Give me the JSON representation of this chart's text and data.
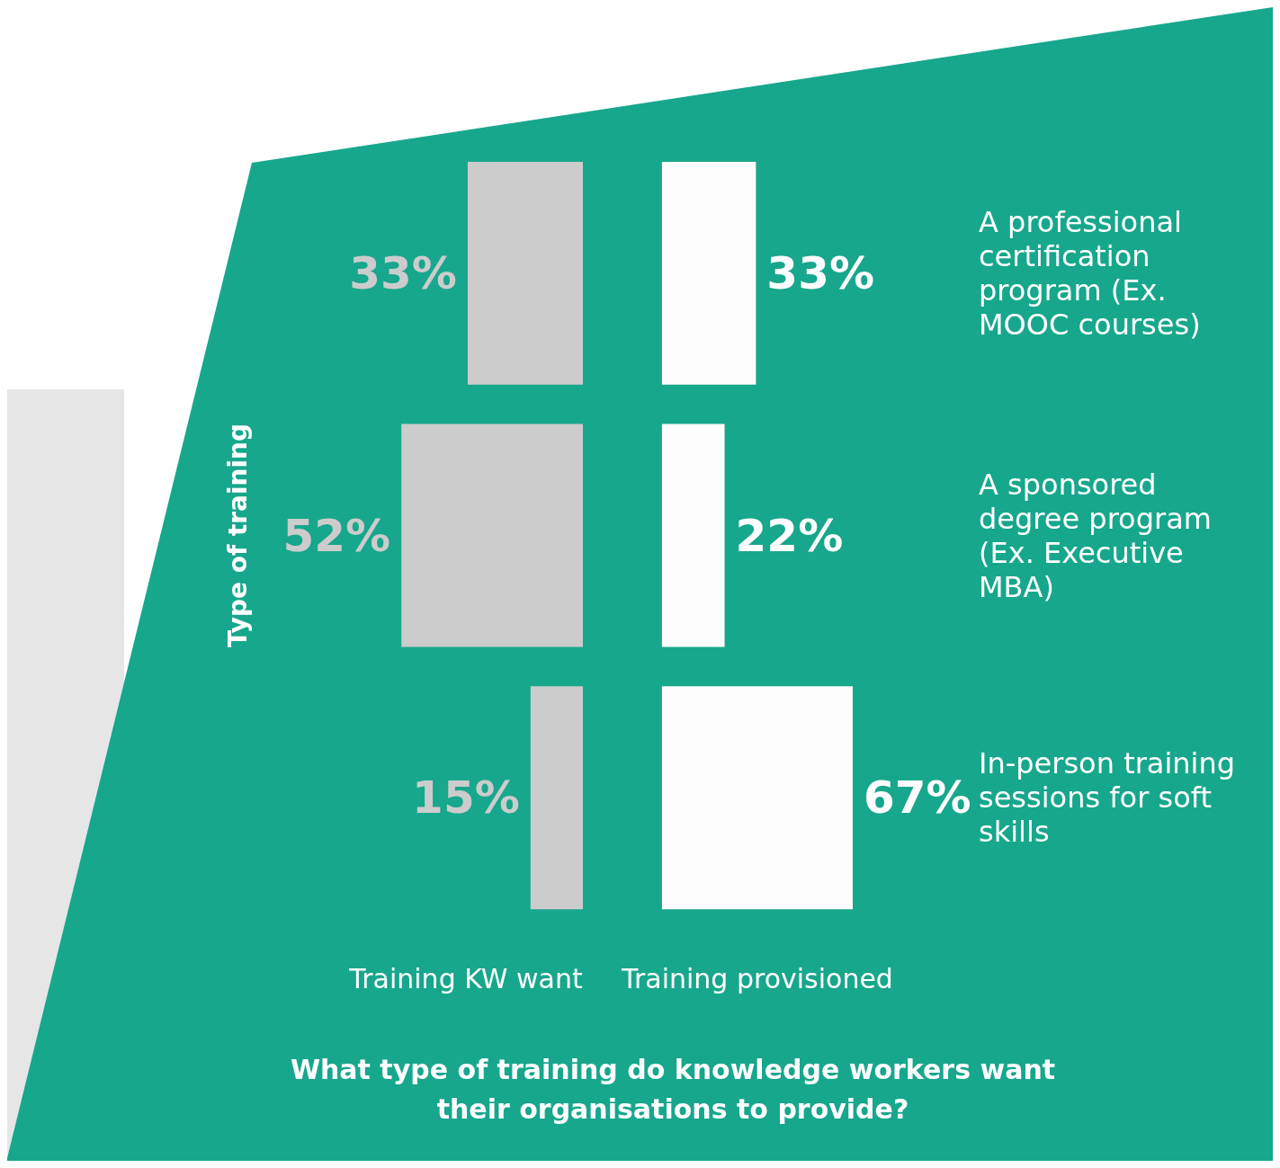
{
  "chart_data": [
    {
      "type": "bar",
      "orientation": "horizontal",
      "xlabel": "Training KW want",
      "ylabel": "Type of training",
      "categories": [
        "A professional certification program (Ex. MOOC courses)",
        "A sponsored degree program (Ex. Executive MBA)",
        "In-person training sessions for soft skills"
      ],
      "color": "#cccccc",
      "values": [
        33,
        52,
        15
      ],
      "value_labels": [
        "33%",
        "52%",
        "15%"
      ],
      "tick_labels": false
    },
    {
      "type": "bar",
      "orientation": "horizontal",
      "xlabel": "Training provisioned",
      "title": "What type of training do knowledge workers want their organisations to provide?",
      "categories": [
        "A professional certification program (Ex. MOOC courses)",
        "A sponsored degree program (Ex. Executive MBA)",
        "In-person training sessions for soft skills"
      ],
      "color": "#fdfdfd",
      "values": [
        33,
        22,
        67
      ],
      "value_labels": [
        "33%",
        "22%",
        "67%"
      ],
      "tick_labels": "y"
    }
  ]
}
